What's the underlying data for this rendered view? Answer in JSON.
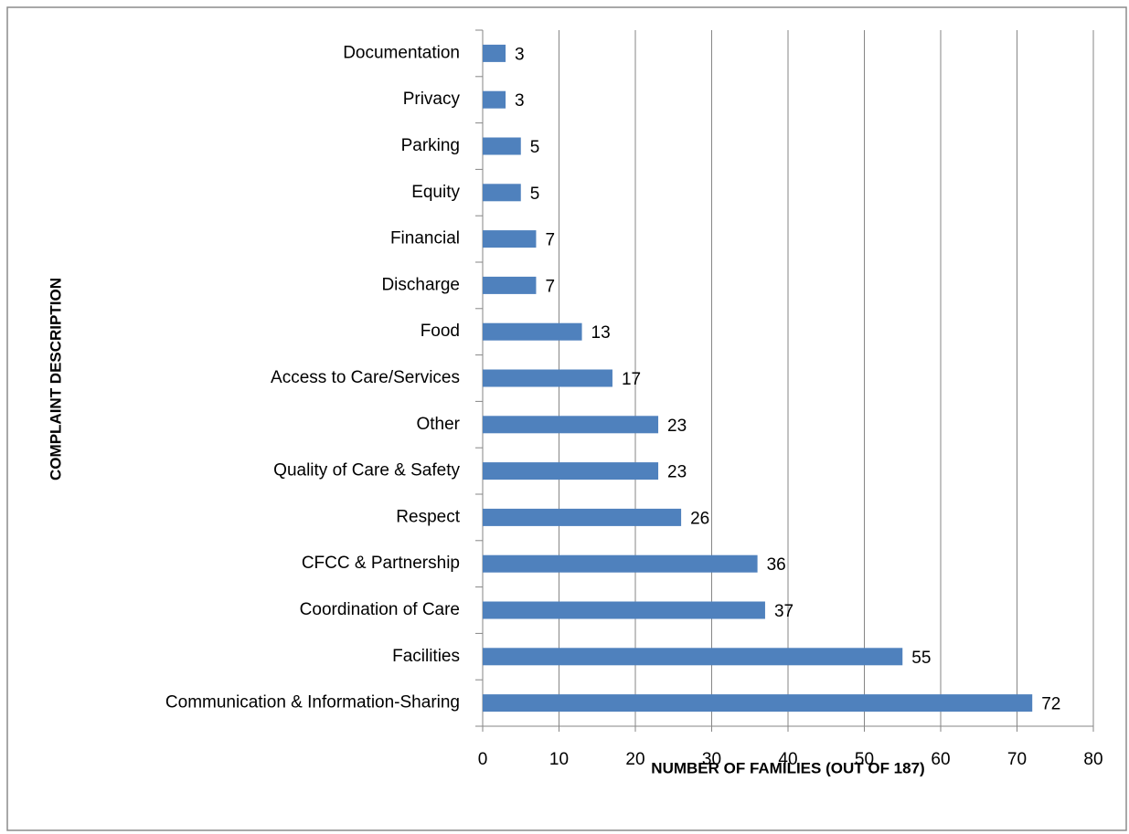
{
  "chart_data": {
    "type": "bar",
    "orientation": "horizontal",
    "categories": [
      "Documentation",
      "Privacy",
      "Parking",
      "Equity",
      "Financial",
      "Discharge",
      "Food",
      "Access to Care/Services",
      "Other",
      "Quality of Care & Safety",
      "Respect",
      "CFCC & Partnership",
      "Coordination of Care",
      "Facilities",
      "Communication & Information-Sharing"
    ],
    "values": [
      3,
      3,
      5,
      5,
      7,
      7,
      13,
      17,
      23,
      23,
      26,
      36,
      37,
      55,
      72
    ],
    "color": "#4f81bd",
    "xlim": [
      0,
      80
    ],
    "xticks": [
      0,
      10,
      20,
      30,
      40,
      50,
      60,
      70,
      80
    ],
    "grid": true,
    "xlabel": "NUMBER OF FAMILIES (OUT OF 187)",
    "ylabel": "COMPLAINT DESCRIPTION"
  }
}
